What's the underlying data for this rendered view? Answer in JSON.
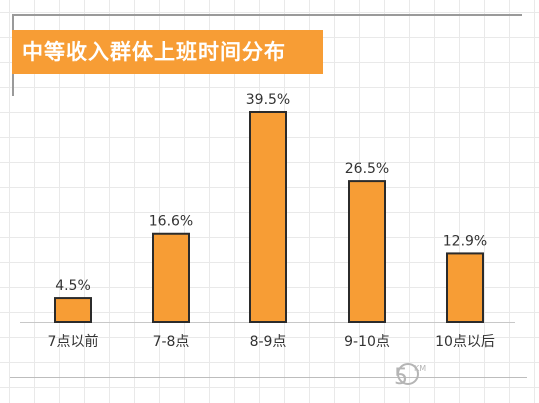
{
  "title": "中等收入群体上班时间分布",
  "chart_data": {
    "type": "bar",
    "categories": [
      "7点以前",
      "7-8点",
      "8-9点",
      "9-10点",
      "10点以后"
    ],
    "values": [
      4.5,
      16.6,
      39.5,
      26.5,
      12.9
    ],
    "value_labels": [
      "4.5%",
      "16.6%",
      "39.5%",
      "26.5%",
      "12.9%"
    ],
    "ylim": [
      0,
      39.5
    ],
    "grid": true,
    "bar_color": "#f79d35",
    "bar_outline": "#2b2b2b"
  },
  "logo": {
    "text_main": "5",
    "text_sub": "KM"
  }
}
